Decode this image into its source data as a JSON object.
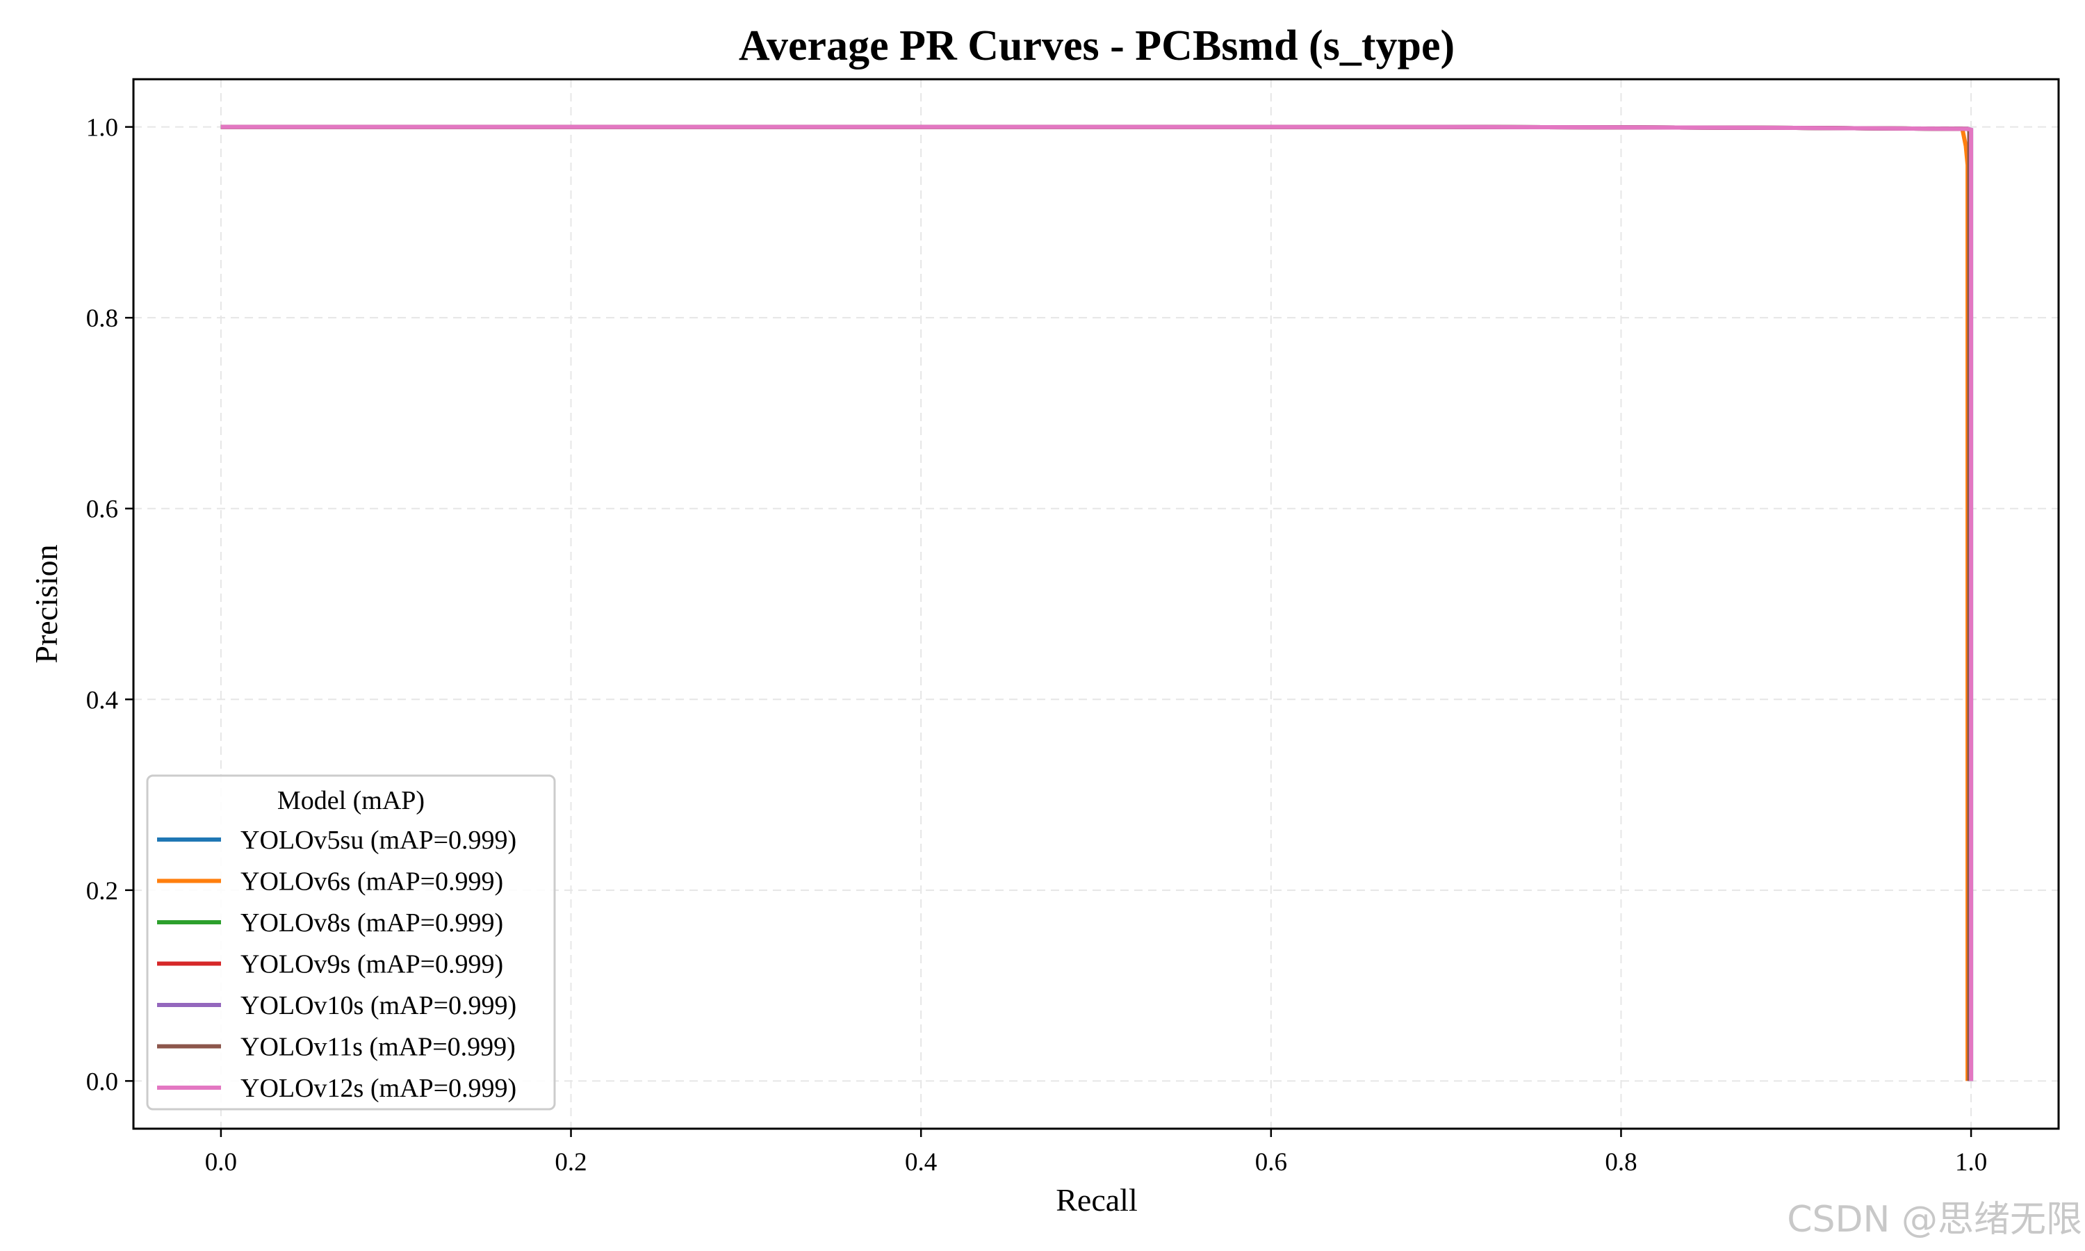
{
  "chart_data": {
    "type": "line",
    "title": "Average PR Curves - PCBsmd (s_type)",
    "xlabel": "Recall",
    "ylabel": "Precision",
    "xlim": [
      -0.05,
      1.05
    ],
    "ylim": [
      -0.05,
      1.05
    ],
    "xticks": [
      "0.0",
      "0.2",
      "0.4",
      "0.6",
      "0.8",
      "1.0"
    ],
    "yticks": [
      "0.0",
      "0.2",
      "0.4",
      "0.6",
      "0.8",
      "1.0"
    ],
    "grid": true,
    "legend": {
      "title": "Model (mAP)",
      "placement": "lower-left"
    },
    "series": [
      {
        "name": "YOLOv5su (mAP=0.999)",
        "color": "#1f77b4",
        "x": [
          0.0,
          0.7,
          0.9,
          0.998,
          1.0,
          1.0
        ],
        "y": [
          1.0,
          1.0,
          0.999,
          0.998,
          0.997,
          0.0
        ]
      },
      {
        "name": "YOLOv6s (mAP=0.999)",
        "color": "#ff7f0e",
        "x": [
          0.0,
          0.7,
          0.9,
          0.995,
          0.997,
          0.998,
          0.998
        ],
        "y": [
          1.0,
          1.0,
          0.999,
          0.998,
          0.98,
          0.96,
          0.0
        ]
      },
      {
        "name": "YOLOv8s (mAP=0.999)",
        "color": "#2ca02c",
        "x": [
          0.0,
          0.7,
          0.9,
          0.998,
          0.999,
          0.999
        ],
        "y": [
          1.0,
          1.0,
          0.999,
          0.998,
          0.997,
          0.0
        ]
      },
      {
        "name": "YOLOv9s (mAP=0.999)",
        "color": "#d62728",
        "x": [
          0.0,
          0.7,
          0.9,
          0.998,
          0.999,
          0.999
        ],
        "y": [
          1.0,
          1.0,
          0.999,
          0.998,
          0.997,
          0.0
        ]
      },
      {
        "name": "YOLOv10s (mAP=0.999)",
        "color": "#9467bd",
        "x": [
          0.0,
          0.7,
          0.9,
          0.998,
          0.999,
          0.999
        ],
        "y": [
          1.0,
          1.0,
          0.999,
          0.998,
          0.997,
          0.0
        ]
      },
      {
        "name": "YOLOv11s (mAP=0.999)",
        "color": "#8c564b",
        "x": [
          0.0,
          0.7,
          0.9,
          0.998,
          0.999,
          0.999
        ],
        "y": [
          1.0,
          1.0,
          0.999,
          0.998,
          0.997,
          0.0
        ]
      },
      {
        "name": "YOLOv12s (mAP=0.999)",
        "color": "#e377c2",
        "x": [
          0.0,
          0.7,
          0.9,
          0.998,
          1.0,
          1.0
        ],
        "y": [
          1.0,
          1.0,
          0.999,
          0.998,
          0.997,
          0.0
        ]
      }
    ]
  },
  "watermark": "CSDN @思绪无限"
}
